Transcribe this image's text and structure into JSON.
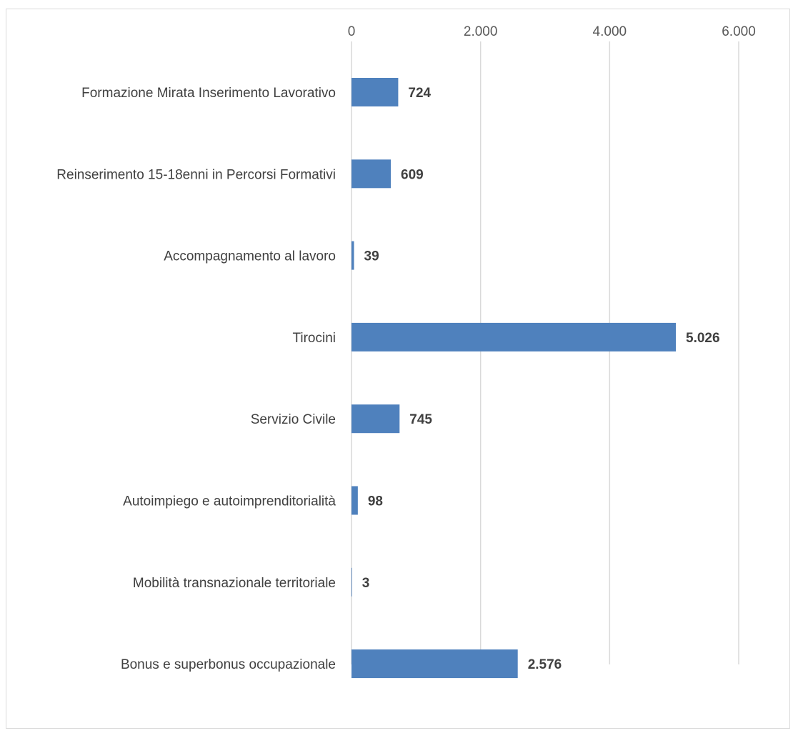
{
  "chart_data": {
    "type": "bar",
    "orientation": "horizontal",
    "categories": [
      "Formazione Mirata Inserimento Lavorativo",
      "Reinserimento 15-18enni in Percorsi Formativi",
      "Accompagnamento al lavoro",
      "Tirocini",
      "Servizio Civile",
      "Autoimpiego e autoimprenditorialità",
      "Mobilità transnazionale territoriale",
      "Bonus e superbonus occupazionale"
    ],
    "values": [
      724,
      609,
      39,
      5026,
      745,
      98,
      3,
      2576
    ],
    "data_labels": [
      "724",
      "609",
      "39",
      "5.026",
      "745",
      "98",
      "3",
      "2.576"
    ],
    "x_ticks": [
      0,
      2000,
      4000,
      6000
    ],
    "x_tick_labels": [
      "0",
      "2.000",
      "4.000",
      "6.000"
    ],
    "xlim": [
      0,
      6000
    ],
    "xaxis_position": "top",
    "grid": true,
    "legend": "none",
    "title": "",
    "xlabel": "",
    "ylabel": "",
    "colors": {
      "bar": "#4f81bd",
      "grid": "#d9d9d9",
      "tick_text": "#595959",
      "label_text": "#404040"
    }
  }
}
